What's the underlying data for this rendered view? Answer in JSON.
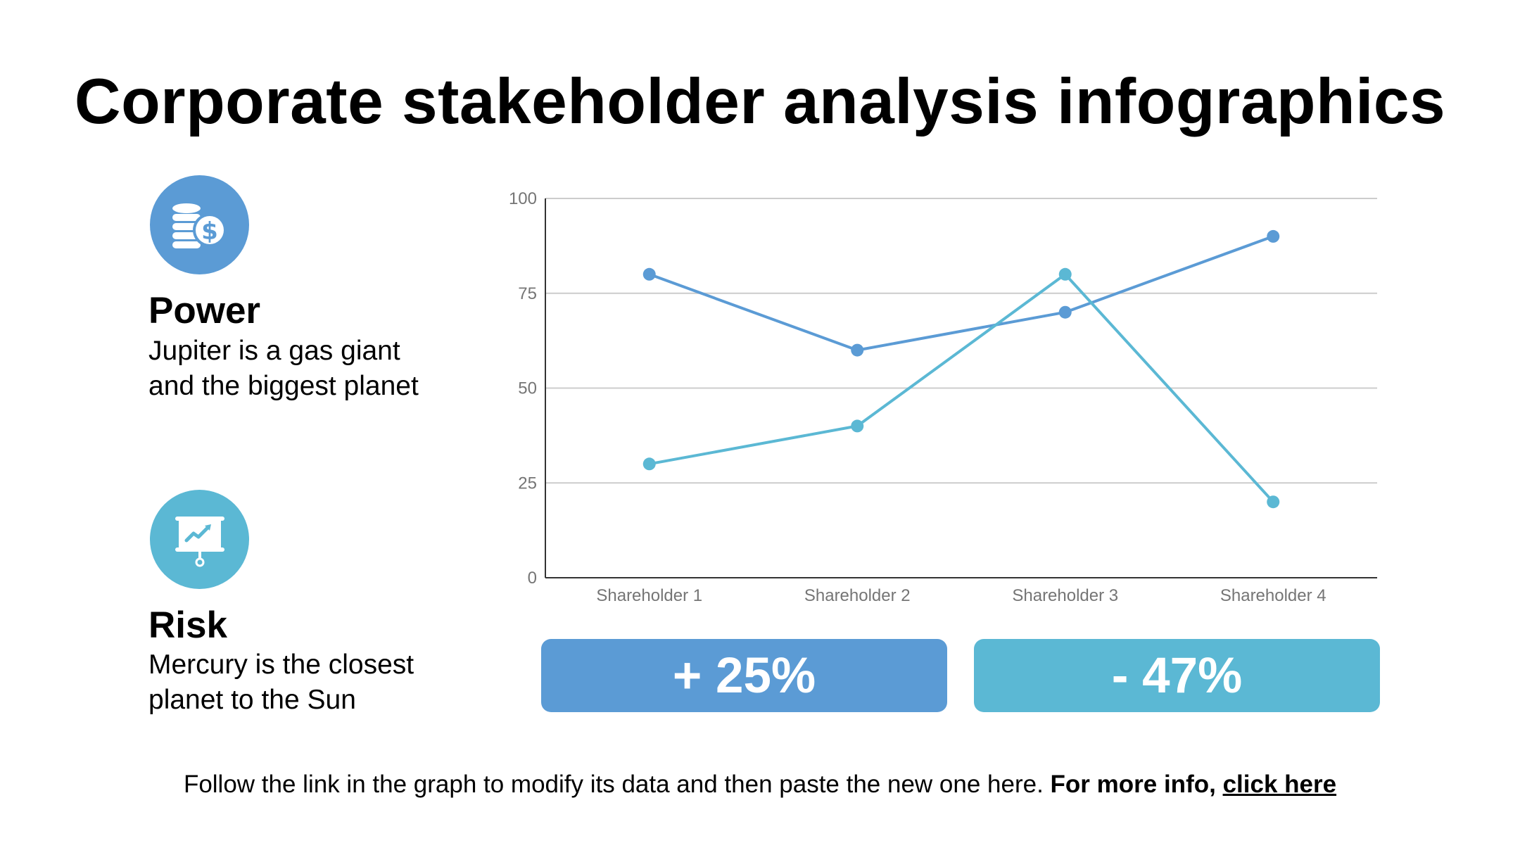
{
  "page": {
    "title": "Corporate stakeholder analysis infographics"
  },
  "features": [
    {
      "title": "Power",
      "text_line1": "Jupiter is a gas giant",
      "text_line2": "and the biggest planet",
      "icon": "coins-dollar-icon",
      "color": "#5b9bd5"
    },
    {
      "title": "Risk",
      "text_line1": "Mercury is the closest",
      "text_line2": "planet to the Sun",
      "icon": "presentation-chart-icon",
      "color": "#5bb8d4"
    }
  ],
  "stats": [
    {
      "value": "+ 25%",
      "color": "#5b9bd5"
    },
    {
      "value": "- 47%",
      "color": "#5bb8d4"
    }
  ],
  "footer": {
    "text": "Follow the link in the graph to modify its data and then paste the new one here.",
    "bold": "For more info,",
    "link": "click here"
  },
  "chart_data": {
    "type": "line",
    "categories": [
      "Shareholder 1",
      "Shareholder 2",
      "Shareholder 3",
      "Shareholder 4"
    ],
    "series": [
      {
        "values": [
          80,
          60,
          70,
          90
        ],
        "color": "#5b9bd5"
      },
      {
        "values": [
          30,
          40,
          80,
          20
        ],
        "color": "#5bb8d4"
      }
    ],
    "ylim": [
      0,
      100
    ],
    "yticks": [
      0,
      25,
      50,
      75,
      100
    ],
    "grid": true,
    "legend": "none"
  }
}
